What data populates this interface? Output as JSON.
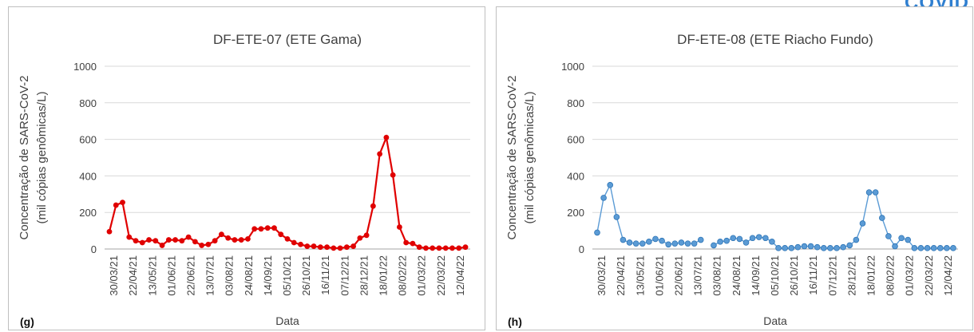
{
  "logo_text": "COVID",
  "chart_data": [
    {
      "type": "line",
      "panel_label": "(g)",
      "title": "DF-ETE-07 (ETE Gama)",
      "xlabel": "Data",
      "ylabel_lines": [
        "Concentração de SARS-CoV-2",
        "(mil cópias genômicas/L)"
      ],
      "ylim": [
        0,
        1000
      ],
      "yticks": [
        "0",
        "200",
        "400",
        "600",
        "800",
        "1000"
      ],
      "grid": true,
      "color": "#e00000",
      "x_tick_labels": [
        "30/03/21",
        "22/04/21",
        "13/05/21",
        "01/06/21",
        "22/06/21",
        "13/07/21",
        "03/08/21",
        "24/08/21",
        "14/09/21",
        "05/10/21",
        "26/10/21",
        "16/11/21",
        "07/12/21",
        "28/12/21",
        "18/01/22",
        "08/02/22",
        "01/03/22",
        "22/03/22",
        "12/04/22"
      ],
      "values": [
        95,
        240,
        255,
        65,
        45,
        35,
        50,
        45,
        20,
        50,
        50,
        45,
        65,
        40,
        20,
        25,
        45,
        80,
        60,
        50,
        50,
        55,
        110,
        110,
        115,
        115,
        80,
        55,
        35,
        25,
        15,
        15,
        10,
        10,
        5,
        5,
        10,
        15,
        60,
        75,
        235,
        520,
        610,
        405,
        120,
        35,
        30,
        10,
        5,
        5,
        5,
        5,
        5,
        5,
        10
      ]
    },
    {
      "type": "line",
      "panel_label": "(h)",
      "title": "DF-ETE-08 (ETE Riacho Fundo)",
      "xlabel": "Data",
      "ylabel_lines": [
        "Concentração de SARS-CoV-2",
        "(mil cópias genômicas/L)"
      ],
      "ylim": [
        0,
        1000
      ],
      "yticks": [
        "0",
        "200",
        "400",
        "600",
        "800",
        "1000"
      ],
      "grid": true,
      "color": "#5b9bd5",
      "x_tick_labels": [
        "30/03/21",
        "22/04/21",
        "13/05/21",
        "01/06/21",
        "22/06/21",
        "13/07/21",
        "03/08/21",
        "24/08/21",
        "14/09/21",
        "05/10/21",
        "26/10/21",
        "16/11/21",
        "07/12/21",
        "28/12/21",
        "18/01/22",
        "08/02/22",
        "01/03/22",
        "22/03/22",
        "12/04/22"
      ],
      "values": [
        90,
        280,
        350,
        175,
        50,
        35,
        30,
        30,
        40,
        55,
        45,
        25,
        30,
        35,
        30,
        30,
        50,
        null,
        20,
        40,
        45,
        60,
        55,
        35,
        60,
        65,
        60,
        40,
        5,
        5,
        5,
        10,
        15,
        15,
        10,
        5,
        5,
        5,
        10,
        20,
        50,
        140,
        310,
        310,
        170,
        70,
        15,
        60,
        50,
        5,
        5,
        5,
        5,
        5,
        5,
        5
      ]
    }
  ]
}
